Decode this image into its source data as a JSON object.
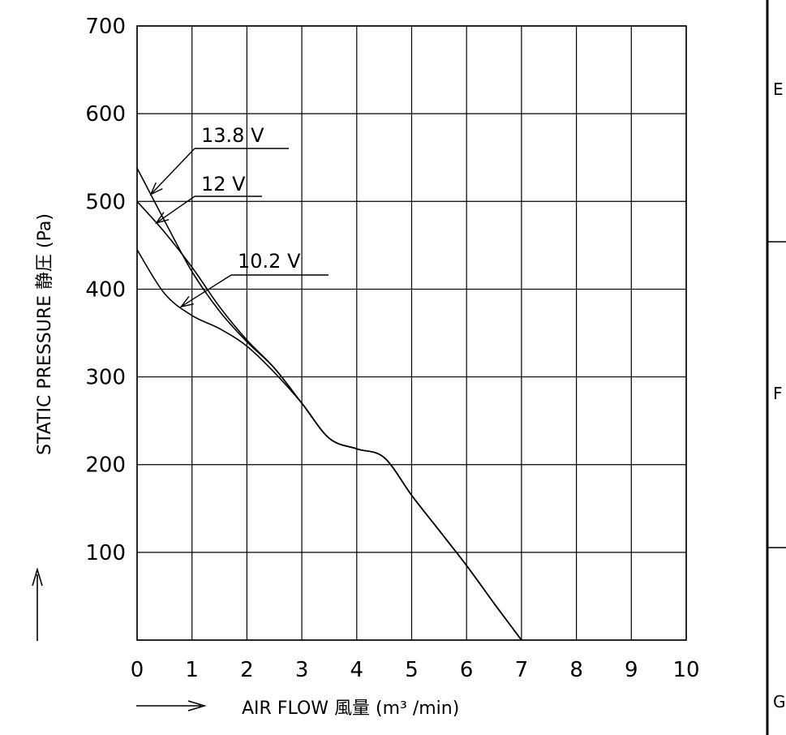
{
  "chart_data": {
    "type": "line",
    "xlabel": "AIR FLOW 風量 (m³ /min)",
    "ylabel": "STATIC PRESSURE 静圧 (Pa)",
    "xlim": [
      0,
      10
    ],
    "ylim": [
      0,
      700
    ],
    "x_ticks": [
      "0",
      "1",
      "2",
      "3",
      "4",
      "5",
      "6",
      "7",
      "8",
      "9",
      "10"
    ],
    "y_ticks": [
      "100",
      "200",
      "300",
      "400",
      "500",
      "600",
      "700"
    ],
    "grid": true,
    "series": [
      {
        "name": "13.8 V",
        "x": [
          0,
          0.5,
          1,
          1.5,
          2,
          2.5,
          3,
          3.5,
          4,
          4.5,
          5,
          5.5,
          6,
          6.5,
          7
        ],
        "y": [
          538,
          478,
          420,
          375,
          340,
          310,
          270,
          230,
          218,
          208,
          165,
          125,
          85,
          42,
          0
        ]
      },
      {
        "name": "12 V",
        "x": [
          0,
          0.5,
          1,
          1.5,
          2,
          2.5,
          3,
          3.5,
          4,
          4.5,
          5,
          5.5,
          6,
          6.5,
          7
        ],
        "y": [
          500,
          465,
          425,
          380,
          342,
          310,
          270,
          230,
          218,
          208,
          165,
          125,
          85,
          42,
          0
        ]
      },
      {
        "name": "10.2 V",
        "x": [
          0,
          0.5,
          1,
          1.5,
          2,
          2.5,
          3,
          3.5,
          4,
          4.5,
          5,
          5.5,
          6,
          6.5,
          7
        ],
        "y": [
          445,
          395,
          370,
          355,
          335,
          305,
          270,
          230,
          218,
          208,
          165,
          125,
          85,
          42,
          0
        ]
      }
    ]
  },
  "frame_zones": [
    "E",
    "F",
    "G"
  ]
}
